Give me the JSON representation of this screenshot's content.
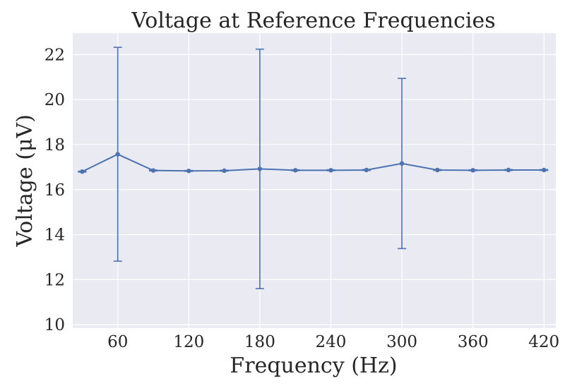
{
  "chart_data": {
    "type": "line",
    "title": "Voltage at Reference Frequencies",
    "xlabel": "Frequency (Hz)",
    "ylabel": "Voltage (μV)",
    "xlim": [
      22,
      430
    ],
    "ylim": [
      9.85,
      22.95
    ],
    "xticks": [
      60,
      120,
      180,
      240,
      300,
      360,
      420
    ],
    "yticks": [
      10,
      12,
      14,
      16,
      18,
      20,
      22
    ],
    "grid": true,
    "colors": {
      "series": "#4c72b0",
      "background": "#eaeaf2",
      "grid": "#ffffff"
    },
    "series": [
      {
        "x": [
          30,
          60,
          90,
          120,
          150,
          180,
          210,
          240,
          270,
          300,
          330,
          360,
          390,
          420
        ],
        "y": [
          16.8,
          17.57,
          16.85,
          16.83,
          16.84,
          16.92,
          16.86,
          16.86,
          16.87,
          17.16,
          16.87,
          16.86,
          16.87,
          16.87
        ],
        "error": [
          0.02,
          4.75,
          0.02,
          0.02,
          0.02,
          5.32,
          0.02,
          0.02,
          0.02,
          3.78,
          0.02,
          0.02,
          0.02,
          0.02
        ]
      }
    ]
  }
}
